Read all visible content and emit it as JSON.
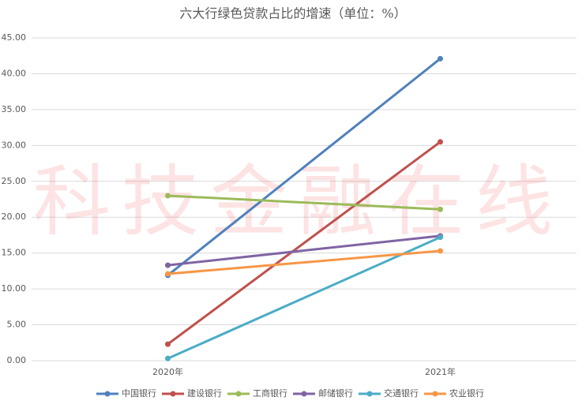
{
  "chart_data": {
    "type": "line",
    "title": "六大行绿色贷款占比的增速（单位：%）",
    "watermark": "科技金融在线",
    "categories": [
      "2020年",
      "2021年"
    ],
    "series": [
      {
        "name": "中国银行",
        "color": "#4f81bd",
        "values": [
          11.9,
          42.1
        ]
      },
      {
        "name": "建设银行",
        "color": "#c0504d",
        "values": [
          2.3,
          30.5
        ]
      },
      {
        "name": "工商银行",
        "color": "#9bbb59",
        "values": [
          23.0,
          21.1
        ]
      },
      {
        "name": "邮储银行",
        "color": "#8064a2",
        "values": [
          13.3,
          17.4
        ]
      },
      {
        "name": "交通银行",
        "color": "#4bacc6",
        "values": [
          0.3,
          17.2
        ]
      },
      {
        "name": "农业银行",
        "color": "#f79646",
        "values": [
          12.1,
          15.3
        ]
      }
    ],
    "ylim": [
      0,
      45
    ],
    "yticks": [
      {
        "value": 0,
        "label": "0.00"
      },
      {
        "value": 5,
        "label": "5.00"
      },
      {
        "value": 10,
        "label": "10.00"
      },
      {
        "value": 15,
        "label": "15.00"
      },
      {
        "value": 20,
        "label": "20.00"
      },
      {
        "value": 25,
        "label": "25.00"
      },
      {
        "value": 30,
        "label": "30.00"
      },
      {
        "value": 35,
        "label": "35.00"
      },
      {
        "value": 40,
        "label": "40.00"
      },
      {
        "value": 45,
        "label": "45.00"
      }
    ],
    "grid": true,
    "legend": "bottom"
  }
}
